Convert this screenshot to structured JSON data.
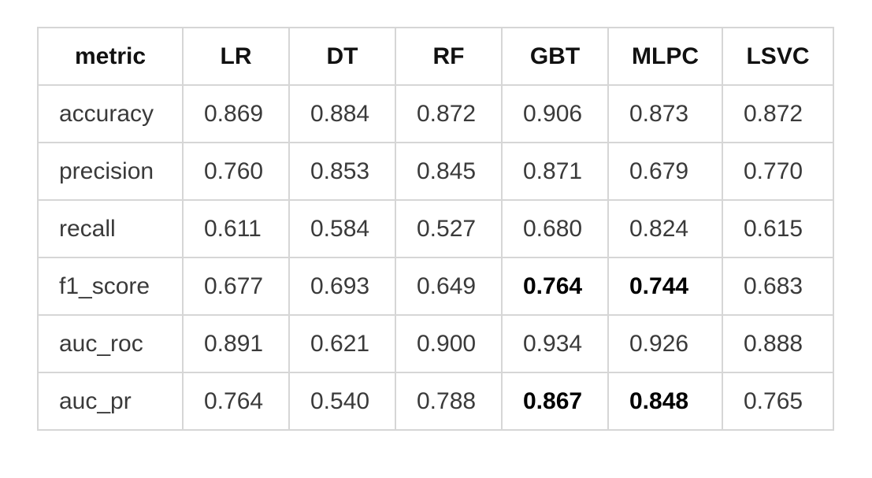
{
  "table": {
    "headers": [
      "metric",
      "LR",
      "DT",
      "RF",
      "GBT",
      "MLPC",
      "LSVC"
    ],
    "rows": [
      {
        "cells": [
          "accuracy",
          "0.869",
          "0.884",
          "0.872",
          "0.906",
          "0.873",
          "0.872"
        ],
        "bold": [
          false,
          false,
          false,
          false,
          false,
          false,
          false
        ]
      },
      {
        "cells": [
          "precision",
          "0.760",
          "0.853",
          "0.845",
          "0.871",
          "0.679",
          "0.770"
        ],
        "bold": [
          false,
          false,
          false,
          false,
          false,
          false,
          false
        ]
      },
      {
        "cells": [
          "recall",
          "0.611",
          "0.584",
          "0.527",
          "0.680",
          "0.824",
          "0.615"
        ],
        "bold": [
          false,
          false,
          false,
          false,
          false,
          false,
          false
        ]
      },
      {
        "cells": [
          "f1_score",
          "0.677",
          "0.693",
          "0.649",
          "0.764",
          "0.744",
          "0.683"
        ],
        "bold": [
          false,
          false,
          false,
          false,
          true,
          true,
          false
        ]
      },
      {
        "cells": [
          "auc_roc",
          "0.891",
          "0.621",
          "0.900",
          "0.934",
          "0.926",
          "0.888"
        ],
        "bold": [
          false,
          false,
          false,
          false,
          false,
          false,
          false
        ]
      },
      {
        "cells": [
          "auc_pr",
          "0.764",
          "0.540",
          "0.788",
          "0.867",
          "0.848",
          "0.765"
        ],
        "bold": [
          false,
          false,
          false,
          false,
          true,
          true,
          false
        ]
      }
    ]
  }
}
